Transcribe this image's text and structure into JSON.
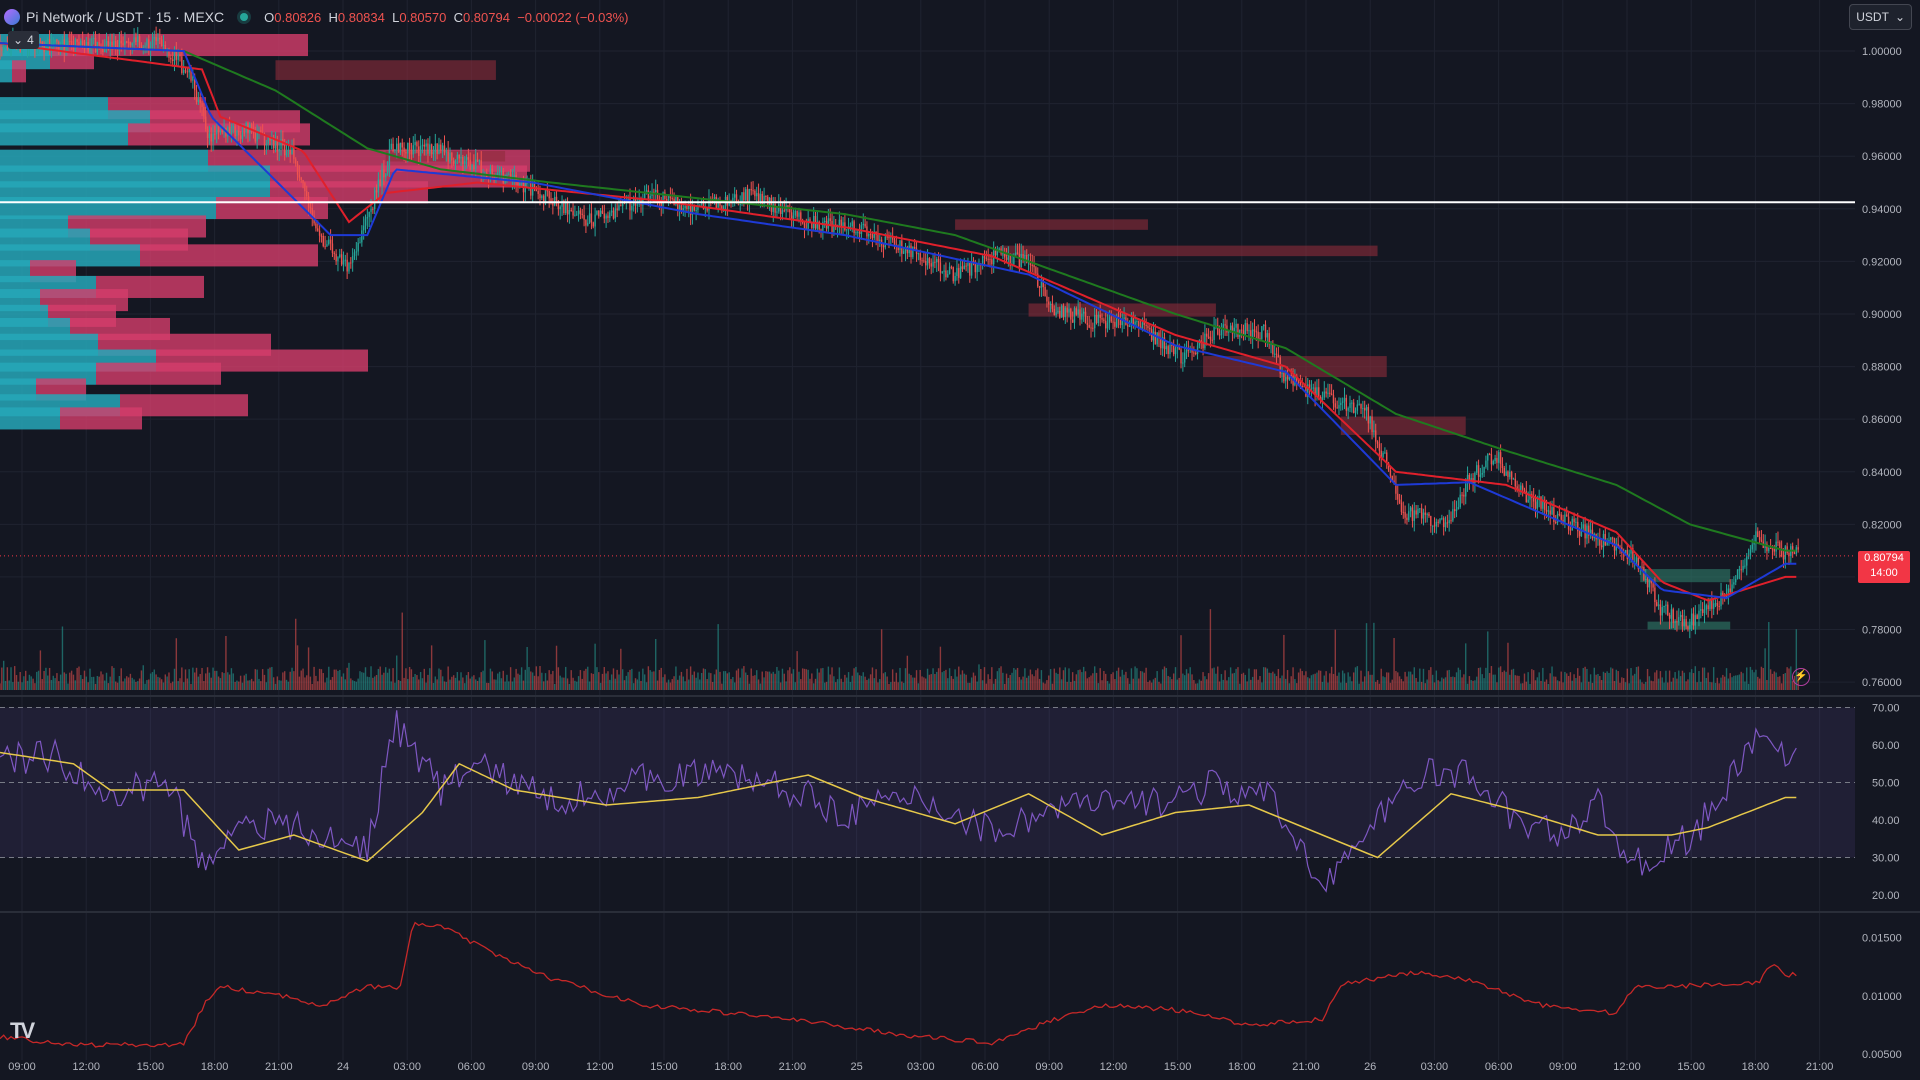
{
  "header": {
    "symbol": "Pi Network / USDT · 15 · MEXC",
    "open_label": "O",
    "open": "0.80826",
    "high_label": "H",
    "high": "0.80834",
    "low_label": "L",
    "low": "0.80570",
    "close_label": "C",
    "close": "0.80794",
    "change": "−0.00022 (−0.03%)",
    "indicator_count": "4",
    "currency": "USDT"
  },
  "last_price": {
    "value": "0.80794",
    "countdown": "14:00"
  },
  "colors": {
    "background": "#141722",
    "up": "#26a69a",
    "down": "#ef5350",
    "ema_fast": "#1e3ad6",
    "ema_mid": "#e0202b",
    "ema_slow": "#1f7a1f",
    "rsi": "#7e57c2",
    "rsi_ma": "#e6c84a",
    "atr": "#c62828",
    "vp_up": "#26a7b8",
    "vp_down": "#d43d6c"
  },
  "chart_data": {
    "type": "candlestick",
    "price_axis": {
      "ticks": [
        "1.00000",
        "0.98000",
        "0.96000",
        "0.94000",
        "0.92000",
        "0.90000",
        "0.88000",
        "0.86000",
        "0.84000",
        "0.82000",
        "0.80000",
        "0.78000",
        "0.76000"
      ],
      "range": [
        0.757,
        1.008
      ]
    },
    "time_axis": [
      "09:00",
      "12:00",
      "15:00",
      "18:00",
      "21:00",
      "24",
      "03:00",
      "06:00",
      "09:00",
      "12:00",
      "15:00",
      "18:00",
      "21:00",
      "25",
      "03:00",
      "06:00",
      "09:00",
      "12:00",
      "15:00",
      "18:00",
      "21:00",
      "26",
      "03:00",
      "06:00",
      "09:00",
      "12:00",
      "15:00",
      "18:00",
      "21:00"
    ],
    "horizontal_line": 0.9425,
    "price_anchors": [
      [
        0,
        1.003
      ],
      [
        40,
        1.002
      ],
      [
        90,
        1.003
      ],
      [
        105,
        0.99
      ],
      [
        115,
        0.967
      ],
      [
        135,
        0.97
      ],
      [
        160,
        0.962
      ],
      [
        175,
        0.93
      ],
      [
        190,
        0.918
      ],
      [
        200,
        0.935
      ],
      [
        215,
        0.964
      ],
      [
        240,
        0.962
      ],
      [
        275,
        0.952
      ],
      [
        290,
        0.948
      ],
      [
        320,
        0.935
      ],
      [
        355,
        0.945
      ],
      [
        380,
        0.94
      ],
      [
        410,
        0.945
      ],
      [
        440,
        0.935
      ],
      [
        470,
        0.932
      ],
      [
        500,
        0.922
      ],
      [
        520,
        0.915
      ],
      [
        545,
        0.922
      ],
      [
        560,
        0.92
      ],
      [
        575,
        0.902
      ],
      [
        595,
        0.897
      ],
      [
        620,
        0.896
      ],
      [
        645,
        0.883
      ],
      [
        665,
        0.895
      ],
      [
        690,
        0.893
      ],
      [
        700,
        0.876
      ],
      [
        715,
        0.87
      ],
      [
        745,
        0.862
      ],
      [
        755,
        0.845
      ],
      [
        765,
        0.825
      ],
      [
        790,
        0.82
      ],
      [
        800,
        0.836
      ],
      [
        815,
        0.847
      ],
      [
        825,
        0.835
      ],
      [
        850,
        0.822
      ],
      [
        870,
        0.815
      ],
      [
        892,
        0.807
      ],
      [
        905,
        0.788
      ],
      [
        920,
        0.782
      ],
      [
        940,
        0.793
      ],
      [
        957,
        0.815
      ],
      [
        972,
        0.809
      ]
    ],
    "ema_fast_anchors": [
      [
        0,
        1.003
      ],
      [
        100,
        1.0
      ],
      [
        115,
        0.975
      ],
      [
        180,
        0.93
      ],
      [
        200,
        0.93
      ],
      [
        215,
        0.955
      ],
      [
        290,
        0.95
      ],
      [
        380,
        0.938
      ],
      [
        460,
        0.93
      ],
      [
        560,
        0.915
      ],
      [
        640,
        0.888
      ],
      [
        700,
        0.878
      ],
      [
        760,
        0.835
      ],
      [
        800,
        0.836
      ],
      [
        880,
        0.812
      ],
      [
        905,
        0.795
      ],
      [
        940,
        0.792
      ],
      [
        972,
        0.805
      ]
    ],
    "ema_mid_anchors": [
      [
        0,
        1.003
      ],
      [
        110,
        0.993
      ],
      [
        120,
        0.975
      ],
      [
        165,
        0.962
      ],
      [
        190,
        0.935
      ],
      [
        210,
        0.946
      ],
      [
        260,
        0.95
      ],
      [
        360,
        0.943
      ],
      [
        460,
        0.933
      ],
      [
        540,
        0.922
      ],
      [
        640,
        0.892
      ],
      [
        700,
        0.88
      ],
      [
        760,
        0.84
      ],
      [
        820,
        0.835
      ],
      [
        880,
        0.817
      ],
      [
        905,
        0.798
      ],
      [
        930,
        0.791
      ],
      [
        972,
        0.8
      ]
    ],
    "ema_slow_anchors": [
      [
        0,
        1.003
      ],
      [
        100,
        1.0
      ],
      [
        150,
        0.985
      ],
      [
        200,
        0.963
      ],
      [
        240,
        0.955
      ],
      [
        300,
        0.95
      ],
      [
        380,
        0.944
      ],
      [
        460,
        0.938
      ],
      [
        520,
        0.93
      ],
      [
        580,
        0.915
      ],
      [
        640,
        0.9
      ],
      [
        700,
        0.887
      ],
      [
        760,
        0.862
      ],
      [
        820,
        0.848
      ],
      [
        880,
        0.835
      ],
      [
        920,
        0.82
      ],
      [
        972,
        0.81
      ]
    ],
    "volume_profile": [
      {
        "price": 1.002,
        "up": 68,
        "down": 240
      },
      {
        "price": 0.997,
        "up": 50,
        "down": 44
      },
      {
        "price": 0.992,
        "up": 12,
        "down": 14
      },
      {
        "price": 0.978,
        "up": 108,
        "down": 98
      },
      {
        "price": 0.973,
        "up": 150,
        "down": 150
      },
      {
        "price": 0.968,
        "up": 128,
        "down": 182
      },
      {
        "price": 0.958,
        "up": 208,
        "down": 322
      },
      {
        "price": 0.952,
        "up": 270,
        "down": 257
      },
      {
        "price": 0.946,
        "up": 270,
        "down": 158
      },
      {
        "price": 0.94,
        "up": 216,
        "down": 112
      },
      {
        "price": 0.933,
        "up": 68,
        "down": 138
      },
      {
        "price": 0.928,
        "up": 90,
        "down": 98
      },
      {
        "price": 0.922,
        "up": 140,
        "down": 178
      },
      {
        "price": 0.916,
        "up": 30,
        "down": 46
      },
      {
        "price": 0.91,
        "up": 96,
        "down": 108
      },
      {
        "price": 0.905,
        "up": 40,
        "down": 88
      },
      {
        "price": 0.899,
        "up": 48,
        "down": 68
      },
      {
        "price": 0.894,
        "up": 70,
        "down": 100
      },
      {
        "price": 0.888,
        "up": 98,
        "down": 173
      },
      {
        "price": 0.882,
        "up": 156,
        "down": 212
      },
      {
        "price": 0.877,
        "up": 96,
        "down": 125
      },
      {
        "price": 0.871,
        "up": 36,
        "down": 50
      },
      {
        "price": 0.865,
        "up": 120,
        "down": 128
      },
      {
        "price": 0.86,
        "up": 60,
        "down": 82
      }
    ],
    "supply_zones": [
      [
        150,
        270,
        0.9965,
        0.989
      ],
      [
        210,
        275,
        0.962,
        0.958
      ],
      [
        520,
        625,
        0.936,
        0.932
      ],
      [
        545,
        750,
        0.926,
        0.922
      ],
      [
        560,
        662,
        0.904,
        0.899
      ],
      [
        655,
        755,
        0.884,
        0.876
      ],
      [
        730,
        798,
        0.861,
        0.854
      ],
      [
        893,
        942,
        0.803,
        0.798
      ],
      [
        897,
        942,
        0.783,
        0.78
      ]
    ],
    "rsi": {
      "axis_ticks": [
        "70.00",
        "60.00",
        "50.00",
        "40.00",
        "30.00",
        "20.00"
      ],
      "range": [
        16,
        72
      ],
      "levels": [
        70,
        50,
        30
      ],
      "anchors": [
        [
          0,
          56
        ],
        [
          30,
          57
        ],
        [
          60,
          45
        ],
        [
          90,
          52
        ],
        [
          110,
          28
        ],
        [
          130,
          40
        ],
        [
          160,
          38
        ],
        [
          180,
          34
        ],
        [
          200,
          33
        ],
        [
          215,
          66
        ],
        [
          240,
          48
        ],
        [
          260,
          55
        ],
        [
          300,
          45
        ],
        [
          330,
          48
        ],
        [
          360,
          52
        ],
        [
          400,
          52
        ],
        [
          430,
          48
        ],
        [
          460,
          42
        ],
        [
          500,
          46
        ],
        [
          540,
          37
        ],
        [
          580,
          44
        ],
        [
          620,
          44
        ],
        [
          660,
          49
        ],
        [
          690,
          46
        ],
        [
          720,
          24
        ],
        [
          740,
          33
        ],
        [
          770,
          52
        ],
        [
          800,
          52
        ],
        [
          830,
          38
        ],
        [
          850,
          37
        ],
        [
          870,
          44
        ],
        [
          890,
          28
        ],
        [
          920,
          35
        ],
        [
          940,
          48
        ],
        [
          958,
          65
        ],
        [
          972,
          55
        ]
      ],
      "ma_anchors": [
        [
          0,
          58
        ],
        [
          40,
          55
        ],
        [
          60,
          48
        ],
        [
          100,
          48
        ],
        [
          130,
          32
        ],
        [
          160,
          36
        ],
        [
          200,
          29
        ],
        [
          230,
          42
        ],
        [
          250,
          55
        ],
        [
          280,
          48
        ],
        [
          330,
          44
        ],
        [
          380,
          46
        ],
        [
          440,
          52
        ],
        [
          470,
          46
        ],
        [
          520,
          39
        ],
        [
          560,
          47
        ],
        [
          600,
          36
        ],
        [
          640,
          42
        ],
        [
          680,
          44
        ],
        [
          720,
          36
        ],
        [
          750,
          30
        ],
        [
          790,
          47
        ],
        [
          830,
          42
        ],
        [
          870,
          36
        ],
        [
          910,
          36
        ],
        [
          930,
          38
        ],
        [
          972,
          46
        ]
      ]
    },
    "atr": {
      "axis_ticks": [
        "0.01500",
        "0.01000",
        "0.00500"
      ],
      "range": [
        0.0045,
        0.0165
      ],
      "anchors": [
        [
          0,
          0.0065
        ],
        [
          40,
          0.0058
        ],
        [
          100,
          0.0058
        ],
        [
          112,
          0.0095
        ],
        [
          120,
          0.0108
        ],
        [
          160,
          0.0098
        ],
        [
          175,
          0.0092
        ],
        [
          200,
          0.0108
        ],
        [
          218,
          0.0107
        ],
        [
          225,
          0.0162
        ],
        [
          240,
          0.016
        ],
        [
          270,
          0.0135
        ],
        [
          300,
          0.0115
        ],
        [
          350,
          0.0092
        ],
        [
          420,
          0.0082
        ],
        [
          500,
          0.0065
        ],
        [
          540,
          0.006
        ],
        [
          580,
          0.0083
        ],
        [
          600,
          0.0092
        ],
        [
          640,
          0.0088
        ],
        [
          680,
          0.0075
        ],
        [
          720,
          0.008
        ],
        [
          730,
          0.011
        ],
        [
          770,
          0.012
        ],
        [
          800,
          0.0113
        ],
        [
          840,
          0.0092
        ],
        [
          880,
          0.0085
        ],
        [
          890,
          0.0108
        ],
        [
          910,
          0.0108
        ],
        [
          958,
          0.0112
        ],
        [
          965,
          0.0128
        ],
        [
          972,
          0.0118
        ]
      ]
    }
  }
}
